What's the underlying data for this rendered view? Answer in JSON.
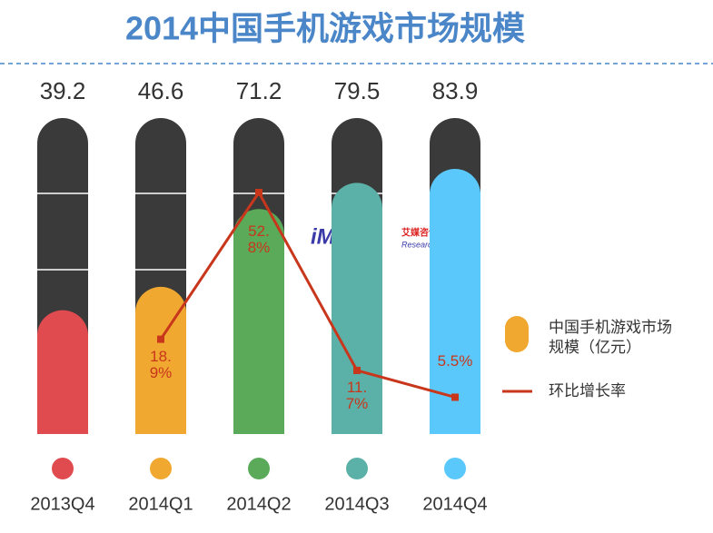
{
  "chart_data": {
    "type": "bar",
    "title": "2014中国手机游戏市场规模",
    "logo": "iMedia",
    "logo_cn": "艾媒咨询",
    "logo_en": "Research",
    "categories": [
      "2013Q4",
      "2014Q1",
      "2014Q2",
      "2014Q3",
      "2014Q4"
    ],
    "ylim": [
      0,
      100
    ],
    "y2lim": [
      -3,
      70
    ],
    "series": [
      {
        "name": "中国手机游戏市场规模（亿元）",
        "color": "#f0a830",
        "colors": [
          "#e04b50",
          "#f0a830",
          "#5aaa5a",
          "#5bb0a8",
          "#5ac8fa"
        ],
        "values": [
          39.2,
          46.6,
          71.2,
          79.5,
          83.9
        ]
      },
      {
        "name": "环比增长率",
        "type": "line",
        "axis": "y2",
        "color": "#c8361b",
        "values": [
          null,
          18.9,
          52.8,
          11.7,
          5.5
        ],
        "value_labels": [
          null,
          "18.9%",
          "52.8%",
          "11.7%",
          "5.5%"
        ]
      }
    ]
  }
}
